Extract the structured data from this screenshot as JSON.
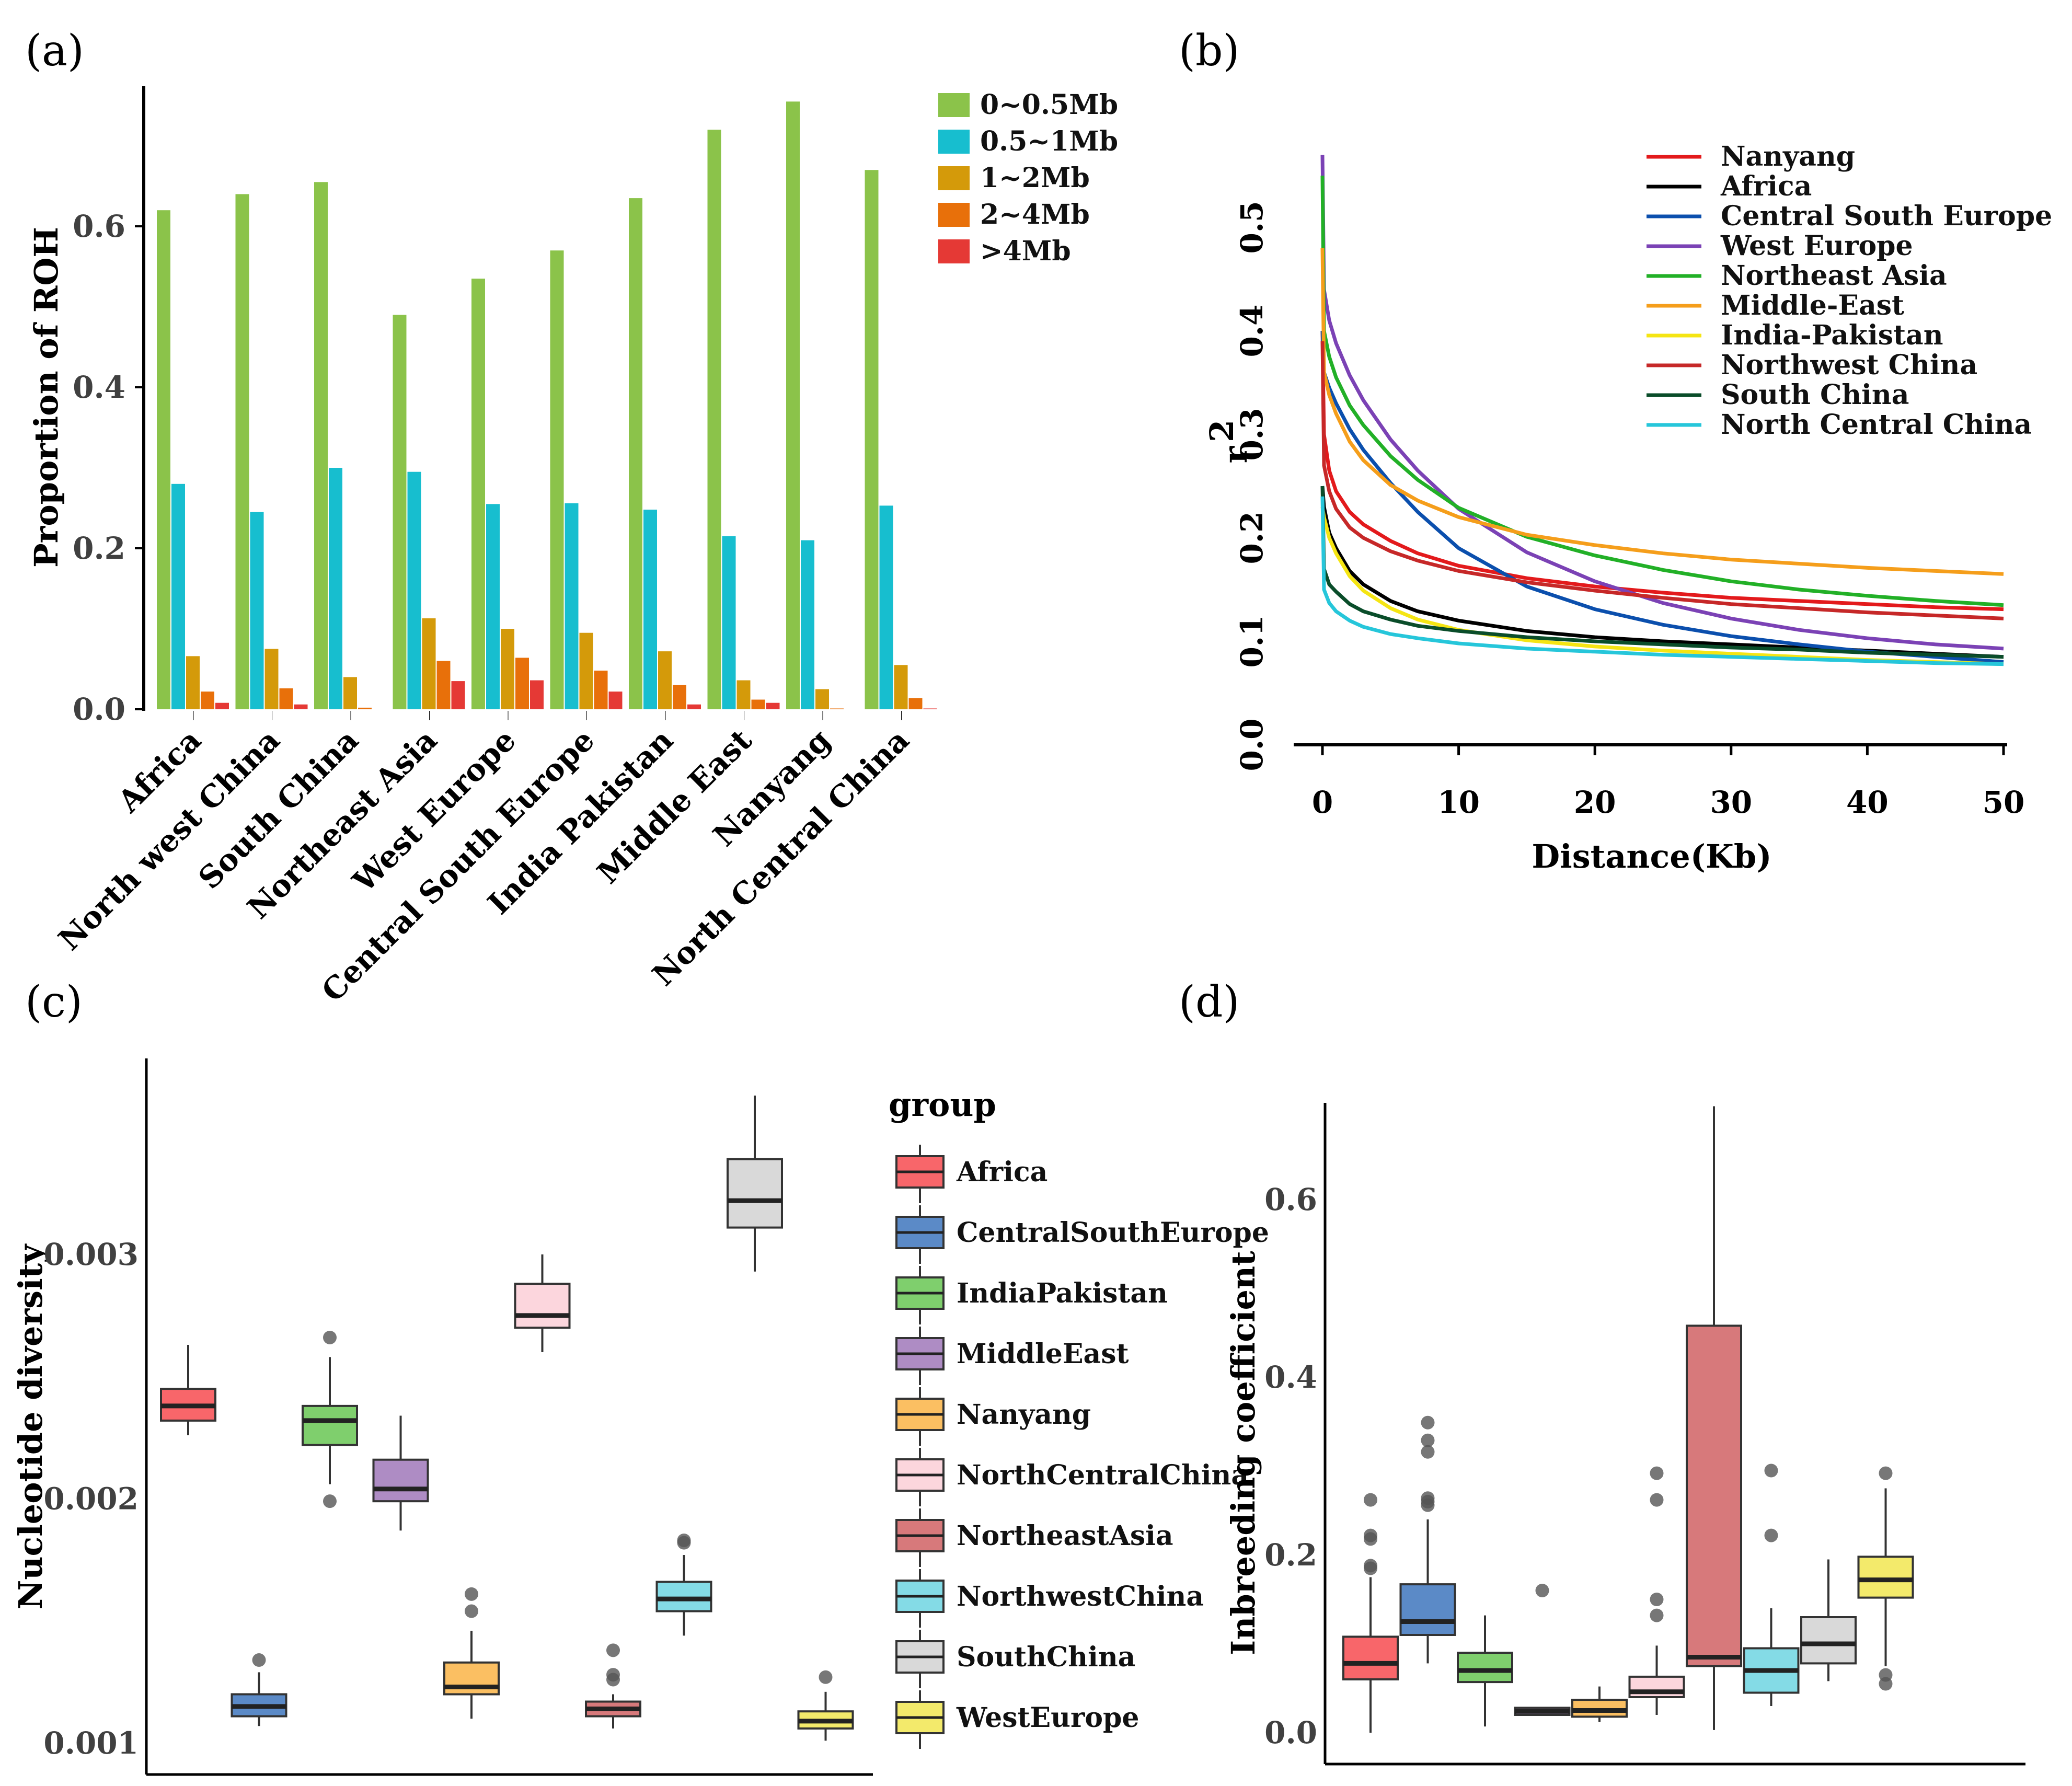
{
  "panels": {
    "a": {
      "label": "(a)"
    },
    "b": {
      "label": "(b)"
    },
    "c": {
      "label": "(c)"
    },
    "d": {
      "label": "(d)"
    }
  },
  "chart_data": [
    {
      "id": "a",
      "type": "bar",
      "title": "",
      "xlabel": "",
      "ylabel": "Proportion of  ROH",
      "ylim": [
        0,
        0.78
      ],
      "yticks": [
        "0.0",
        "0.2",
        "0.4",
        "0.6"
      ],
      "yticks_values": [
        0,
        0.2,
        0.4,
        0.6
      ],
      "categories": [
        "Africa",
        "North west China",
        "South China",
        "Northeast Asia",
        "West Europe",
        "Central South Europe",
        "India Pakistan",
        "Middle East",
        "Nanyang",
        "North Central China"
      ],
      "series": [
        {
          "name": "0~0.5Mb",
          "color": "#8bc34a",
          "values": [
            0.62,
            0.64,
            0.655,
            0.49,
            0.535,
            0.57,
            0.635,
            0.72,
            0.755,
            0.67
          ]
        },
        {
          "name": "0.5~1Mb",
          "color": "#17becf",
          "values": [
            0.28,
            0.245,
            0.3,
            0.295,
            0.255,
            0.256,
            0.248,
            0.215,
            0.21,
            0.253
          ]
        },
        {
          "name": "1~2Mb",
          "color": "#d49a0a",
          "values": [
            0.066,
            0.075,
            0.04,
            0.113,
            0.1,
            0.095,
            0.072,
            0.036,
            0.025,
            0.055
          ]
        },
        {
          "name": "2~4Mb",
          "color": "#e8700a",
          "values": [
            0.022,
            0.026,
            0.002,
            0.06,
            0.064,
            0.048,
            0.03,
            0.012,
            0.001,
            0.014
          ]
        },
        {
          "name": ">4Mb",
          "color": "#e53935",
          "values": [
            0.008,
            0.006,
            0.0,
            0.035,
            0.036,
            0.022,
            0.006,
            0.008,
            0.0,
            0.001
          ]
        }
      ]
    },
    {
      "id": "b",
      "type": "line",
      "title": "",
      "xlabel": "Distance(Kb)",
      "ylabel": "r",
      "ylabel_sup": "2",
      "xlim": [
        0,
        50
      ],
      "ylim": [
        0,
        0.55
      ],
      "xticks": [
        "0",
        "10",
        "20",
        "30",
        "40",
        "50"
      ],
      "xticks_values": [
        0,
        10,
        20,
        30,
        40,
        50
      ],
      "yticks": [
        "0.0",
        "0.1",
        "0.2",
        "0.3",
        "0.4",
        "0.5"
      ],
      "yticks_values": [
        0,
        0.1,
        0.2,
        0.3,
        0.4,
        0.5
      ],
      "x": [
        0,
        0.5,
        1,
        2,
        3,
        5,
        7,
        10,
        15,
        20,
        25,
        30,
        35,
        40,
        45,
        50
      ],
      "series": [
        {
          "name": "Nanyang",
          "color": "#e31a1c",
          "start": 0.4,
          "values": [
            0.3,
            0.265,
            0.245,
            0.225,
            0.213,
            0.197,
            0.185,
            0.173,
            0.161,
            0.153,
            0.147,
            0.142,
            0.139,
            0.136,
            0.133,
            0.131
          ]
        },
        {
          "name": "Africa",
          "color": "#000000",
          "start": 0.25,
          "values": [
            0.23,
            0.205,
            0.19,
            0.168,
            0.155,
            0.139,
            0.129,
            0.12,
            0.11,
            0.104,
            0.1,
            0.097,
            0.094,
            0.091,
            0.088,
            0.085
          ]
        },
        {
          "name": "Central South Europe",
          "color": "#0b4fad",
          "start": 0.4,
          "values": [
            0.36,
            0.345,
            0.33,
            0.305,
            0.285,
            0.253,
            0.225,
            0.19,
            0.153,
            0.131,
            0.116,
            0.105,
            0.097,
            0.09,
            0.085,
            0.08
          ]
        },
        {
          "name": "West Europe",
          "color": "#7b42b5",
          "start": 0.57,
          "values": [
            0.44,
            0.41,
            0.388,
            0.357,
            0.333,
            0.295,
            0.265,
            0.228,
            0.186,
            0.158,
            0.137,
            0.122,
            0.111,
            0.103,
            0.097,
            0.093
          ]
        },
        {
          "name": "Northeast Asia",
          "color": "#22b027",
          "start": 0.55,
          "values": [
            0.4,
            0.375,
            0.355,
            0.328,
            0.309,
            0.279,
            0.256,
            0.229,
            0.201,
            0.183,
            0.169,
            0.158,
            0.15,
            0.144,
            0.139,
            0.135
          ]
        },
        {
          "name": "Middle-East",
          "color": "#f59e1b",
          "start": 0.48,
          "values": [
            0.36,
            0.338,
            0.32,
            0.293,
            0.275,
            0.251,
            0.236,
            0.22,
            0.203,
            0.193,
            0.185,
            0.179,
            0.175,
            0.171,
            0.168,
            0.165
          ]
        },
        {
          "name": "India-Pakistan",
          "color": "#f5e513",
          "start": 0.23,
          "values": [
            0.22,
            0.2,
            0.185,
            0.163,
            0.149,
            0.132,
            0.121,
            0.111,
            0.101,
            0.095,
            0.091,
            0.088,
            0.085,
            0.082,
            0.08,
            0.078
          ]
        },
        {
          "name": "Northwest China",
          "color": "#c62828",
          "start": 0.39,
          "values": [
            0.27,
            0.245,
            0.228,
            0.21,
            0.2,
            0.187,
            0.178,
            0.168,
            0.157,
            0.149,
            0.142,
            0.136,
            0.132,
            0.128,
            0.125,
            0.122
          ]
        },
        {
          "name": "South China",
          "color": "#0a4d2a",
          "start": 0.25,
          "values": [
            0.17,
            0.155,
            0.148,
            0.136,
            0.129,
            0.121,
            0.115,
            0.11,
            0.104,
            0.1,
            0.097,
            0.094,
            0.092,
            0.089,
            0.087,
            0.085
          ]
        },
        {
          "name": "North Central China",
          "color": "#26c6da",
          "start": 0.24,
          "values": [
            0.15,
            0.137,
            0.129,
            0.12,
            0.114,
            0.107,
            0.103,
            0.098,
            0.093,
            0.09,
            0.087,
            0.085,
            0.083,
            0.081,
            0.079,
            0.078
          ]
        }
      ]
    },
    {
      "id": "c",
      "type": "box",
      "title": "",
      "xlabel": "",
      "ylabel": "Nucleotide diversity",
      "ylim": [
        0.00095,
        0.00367
      ],
      "yticks": [
        "0.001",
        "0.002",
        "0.003"
      ],
      "yticks_values": [
        0.001,
        0.002,
        0.003
      ],
      "legend_title": "group",
      "groups": [
        {
          "name": "Africa",
          "color": "#f8666a",
          "whisker_low": 0.00226,
          "q1": 0.00232,
          "median": 0.00238,
          "q3": 0.00245,
          "whisker_high": 0.00263,
          "outliers": []
        },
        {
          "name": "CentralSouthEurope",
          "color": "#5b8ac7",
          "whisker_low": 0.00107,
          "q1": 0.00111,
          "median": 0.00115,
          "q3": 0.0012,
          "whisker_high": 0.00129,
          "outliers": [
            0.00134
          ]
        },
        {
          "name": "IndiaPakistan",
          "color": "#7fcf6d",
          "whisker_low": 0.00206,
          "q1": 0.00222,
          "median": 0.00232,
          "q3": 0.00238,
          "whisker_high": 0.00258,
          "outliers": [
            0.00199,
            0.00266
          ]
        },
        {
          "name": "MiddleEast",
          "color": "#ae8cc4",
          "whisker_low": 0.00187,
          "q1": 0.00199,
          "median": 0.00204,
          "q3": 0.00216,
          "whisker_high": 0.00234,
          "outliers": []
        },
        {
          "name": "Nanyang",
          "color": "#fbbf62",
          "whisker_low": 0.0011,
          "q1": 0.0012,
          "median": 0.00123,
          "q3": 0.00133,
          "whisker_high": 0.00146,
          "outliers": [
            0.00154,
            0.00161
          ]
        },
        {
          "name": "NorthCentralChina",
          "color": "#fcd6dd",
          "whisker_low": 0.0026,
          "q1": 0.0027,
          "median": 0.00275,
          "q3": 0.00288,
          "whisker_high": 0.003,
          "outliers": []
        },
        {
          "name": "NortheastAsia",
          "color": "#d7797b",
          "whisker_low": 0.00106,
          "q1": 0.00111,
          "median": 0.00114,
          "q3": 0.00117,
          "whisker_high": 0.0012,
          "outliers": [
            0.00126,
            0.00128,
            0.00138
          ]
        },
        {
          "name": "NorthwestChina",
          "color": "#84dbe6",
          "whisker_low": 0.00144,
          "q1": 0.00154,
          "median": 0.00159,
          "q3": 0.00166,
          "whisker_high": 0.00177,
          "outliers": [
            0.00182,
            0.00183
          ]
        },
        {
          "name": "SouthChina",
          "color": "#d9d9d9",
          "whisker_low": 0.00293,
          "q1": 0.00311,
          "median": 0.00322,
          "q3": 0.00339,
          "whisker_high": 0.00365,
          "outliers": []
        },
        {
          "name": "WestEurope",
          "color": "#f3ea6b",
          "whisker_low": 0.00101,
          "q1": 0.00106,
          "median": 0.00109,
          "q3": 0.00113,
          "whisker_high": 0.00121,
          "outliers": [
            0.00127
          ]
        }
      ]
    },
    {
      "id": "d",
      "type": "box",
      "title": "",
      "xlabel": "",
      "ylabel": "Inbreeding coefficient",
      "ylim": [
        -0.04,
        0.7
      ],
      "yticks": [
        "0.0",
        "0.2",
        "0.4",
        "0.6"
      ],
      "yticks_values": [
        0,
        0.2,
        0.4,
        0.6
      ],
      "groups": [
        {
          "name": "Africa",
          "color": "#f8666a",
          "whisker_low": 0.0,
          "q1": 0.06,
          "median": 0.078,
          "q3": 0.108,
          "whisker_high": 0.175,
          "outliers": [
            0.185,
            0.188,
            0.218,
            0.222,
            0.262
          ]
        },
        {
          "name": "CentralSouthEurope",
          "color": "#5b8ac7",
          "whisker_low": 0.078,
          "q1": 0.11,
          "median": 0.125,
          "q3": 0.167,
          "whisker_high": 0.24,
          "outliers": [
            0.256,
            0.26,
            0.264,
            0.316,
            0.329,
            0.349
          ]
        },
        {
          "name": "IndiaPakistan",
          "color": "#7fcf6d",
          "whisker_low": 0.007,
          "q1": 0.057,
          "median": 0.07,
          "q3": 0.09,
          "whisker_high": 0.132,
          "outliers": []
        },
        {
          "name": "MiddleEast",
          "color": "#ae8cc4",
          "whisker_low": 0.02,
          "q1": 0.02,
          "median": 0.024,
          "q3": 0.028,
          "whisker_high": 0.028,
          "outliers": [
            0.16
          ]
        },
        {
          "name": "Nanyang",
          "color": "#fbbf62",
          "whisker_low": 0.012,
          "q1": 0.018,
          "median": 0.025,
          "q3": 0.037,
          "whisker_high": 0.052,
          "outliers": []
        },
        {
          "name": "NorthCentralChina",
          "color": "#fcd6dd",
          "whisker_low": 0.02,
          "q1": 0.04,
          "median": 0.046,
          "q3": 0.063,
          "whisker_high": 0.098,
          "outliers": [
            0.132,
            0.15,
            0.262,
            0.292
          ]
        },
        {
          "name": "NortheastAsia",
          "color": "#d7797b",
          "whisker_low": 0.003,
          "q1": 0.075,
          "median": 0.085,
          "q3": 0.458,
          "whisker_high": 0.705,
          "outliers": []
        },
        {
          "name": "NorthwestChina",
          "color": "#84dbe6",
          "whisker_low": 0.03,
          "q1": 0.045,
          "median": 0.07,
          "q3": 0.095,
          "whisker_high": 0.14,
          "outliers": [
            0.222,
            0.295
          ]
        },
        {
          "name": "SouthChina",
          "color": "#d9d9d9",
          "whisker_low": 0.058,
          "q1": 0.078,
          "median": 0.1,
          "q3": 0.13,
          "whisker_high": 0.195,
          "outliers": []
        },
        {
          "name": "WestEurope",
          "color": "#f3ea6b",
          "whisker_low": 0.075,
          "q1": 0.152,
          "median": 0.172,
          "q3": 0.198,
          "whisker_high": 0.275,
          "outliers": [
            0.055,
            0.065,
            0.292
          ]
        }
      ]
    }
  ]
}
